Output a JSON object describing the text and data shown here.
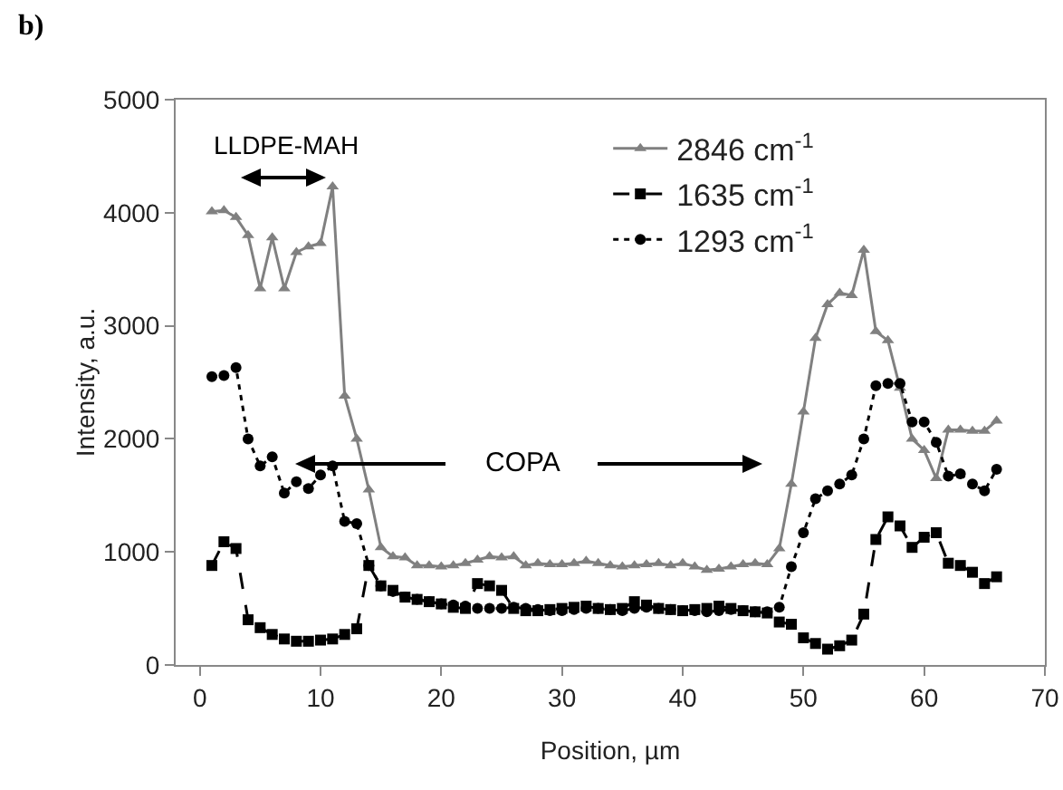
{
  "chart_data": {
    "type": "line",
    "xlabel": "Position, µm",
    "ylabel": "Intensity, a.u.",
    "x": [
      1,
      2,
      3,
      4,
      5,
      6,
      7,
      8,
      9,
      10,
      11,
      12,
      13,
      14,
      15,
      16,
      17,
      18,
      19,
      20,
      21,
      22,
      23,
      24,
      25,
      26,
      27,
      28,
      29,
      30,
      31,
      32,
      33,
      34,
      35,
      36,
      37,
      38,
      39,
      40,
      41,
      42,
      43,
      44,
      45,
      46,
      47,
      48,
      49,
      50,
      51,
      52,
      53,
      54,
      55,
      56,
      57,
      58,
      59,
      60,
      61,
      62,
      63,
      64,
      65,
      66
    ],
    "series": [
      {
        "name": "2846 cm$^{-1}$",
        "color": "#808080",
        "marker": "triangle",
        "line_style": "solid",
        "values": [
          4010,
          4020,
          3960,
          3800,
          3330,
          3780,
          3330,
          3650,
          3700,
          3730,
          4230,
          2380,
          2000,
          1550,
          1040,
          960,
          950,
          880,
          880,
          870,
          880,
          900,
          930,
          960,
          950,
          960,
          880,
          900,
          890,
          890,
          900,
          920,
          900,
          880,
          870,
          880,
          890,
          900,
          880,
          900,
          870,
          840,
          850,
          870,
          890,
          900,
          890,
          1030,
          1600,
          2240,
          2890,
          3190,
          3290,
          3270,
          3670,
          2950,
          2870,
          2450,
          2000,
          1900,
          1650,
          2080,
          2080,
          2070,
          2070,
          2160
        ]
      },
      {
        "name": "1635 cm$^{-1}$",
        "color": "#000000",
        "marker": "square",
        "line_style": "dashed",
        "values": [
          880,
          1090,
          1030,
          400,
          330,
          270,
          230,
          210,
          210,
          220,
          230,
          270,
          320,
          880,
          700,
          660,
          600,
          580,
          560,
          540,
          510,
          500,
          720,
          700,
          660,
          500,
          480,
          480,
          490,
          500,
          510,
          520,
          500,
          490,
          500,
          560,
          530,
          500,
          490,
          480,
          490,
          500,
          520,
          500,
          480,
          470,
          460,
          380,
          360,
          240,
          190,
          140,
          170,
          220,
          450,
          1110,
          1310,
          1230,
          1040,
          1130,
          1170,
          900,
          880,
          820,
          720,
          780
        ]
      },
      {
        "name": "1293 cm$^{-1}$",
        "color": "#000000",
        "marker": "circle",
        "line_style": "dotted",
        "values": [
          2550,
          2560,
          2630,
          2000,
          1760,
          1840,
          1520,
          1620,
          1560,
          1680,
          1760,
          1270,
          1250,
          880,
          700,
          650,
          600,
          580,
          560,
          540,
          530,
          520,
          500,
          500,
          500,
          510,
          500,
          490,
          480,
          480,
          490,
          500,
          500,
          490,
          480,
          500,
          510,
          500,
          490,
          480,
          480,
          470,
          480,
          490,
          480,
          470,
          470,
          510,
          870,
          1170,
          1470,
          1540,
          1600,
          1680,
          2000,
          2470,
          2490,
          2490,
          2150,
          2150,
          1970,
          1670,
          1690,
          1600,
          1540,
          1730
        ]
      }
    ],
    "xlim": [
      -2,
      70
    ],
    "xticks": [
      0,
      10,
      20,
      30,
      40,
      50,
      60,
      70
    ],
    "ylim": [
      0,
      5000
    ],
    "yticks": [
      0,
      1000,
      2000,
      3000,
      4000,
      5000
    ],
    "grid": false,
    "legend": "top",
    "annotations": [
      "b)",
      "LLDPE-MAH",
      "COPA"
    ]
  }
}
